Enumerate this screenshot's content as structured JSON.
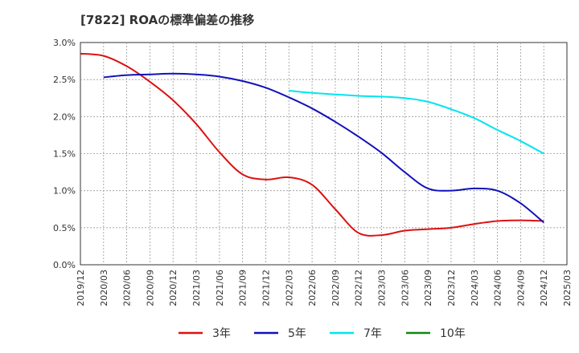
{
  "chart_data": {
    "type": "line",
    "title": "[7822]  ROAの標準偏差の推移",
    "xlabel": "",
    "ylabel": "",
    "ylim": [
      0,
      3.0
    ],
    "y_ticks": [
      "0.0%",
      "0.5%",
      "1.0%",
      "1.5%",
      "2.0%",
      "2.5%",
      "3.0%"
    ],
    "x_ticks": [
      "2019/12",
      "2020/03",
      "2020/06",
      "2020/09",
      "2020/12",
      "2021/03",
      "2021/06",
      "2021/09",
      "2021/12",
      "2022/03",
      "2022/06",
      "2022/09",
      "2022/12",
      "2023/03",
      "2023/06",
      "2023/09",
      "2023/12",
      "2024/03",
      "2024/06",
      "2024/09",
      "2024/12",
      "2025/03"
    ],
    "grid": true,
    "legend_position": "bottom",
    "series": [
      {
        "name": "3年",
        "color": "#dd1111",
        "x": [
          "2019/12",
          "2020/03",
          "2020/06",
          "2020/09",
          "2020/12",
          "2021/03",
          "2021/06",
          "2021/09",
          "2021/12",
          "2022/03",
          "2022/06",
          "2022/09",
          "2022/12",
          "2023/03",
          "2023/06",
          "2023/09",
          "2023/12",
          "2024/03",
          "2024/06",
          "2024/09",
          "2024/12"
        ],
        "values": [
          2.85,
          2.82,
          2.68,
          2.47,
          2.22,
          1.9,
          1.52,
          1.22,
          1.15,
          1.18,
          1.08,
          0.75,
          0.43,
          0.4,
          0.46,
          0.48,
          0.5,
          0.55,
          0.59,
          0.6,
          0.59
        ]
      },
      {
        "name": "5年",
        "color": "#1111bb",
        "x": [
          "2020/03",
          "2020/06",
          "2020/09",
          "2020/12",
          "2021/03",
          "2021/06",
          "2021/09",
          "2021/12",
          "2022/03",
          "2022/06",
          "2022/09",
          "2022/12",
          "2023/03",
          "2023/06",
          "2023/09",
          "2023/12",
          "2024/03",
          "2024/06",
          "2024/09",
          "2024/12"
        ],
        "values": [
          2.53,
          2.56,
          2.57,
          2.58,
          2.57,
          2.54,
          2.48,
          2.39,
          2.26,
          2.11,
          1.93,
          1.73,
          1.51,
          1.25,
          1.03,
          1.0,
          1.03,
          1.0,
          0.83,
          0.57
        ]
      },
      {
        "name": "7年",
        "color": "#00e5ee",
        "x": [
          "2022/03",
          "2022/06",
          "2022/09",
          "2022/12",
          "2023/03",
          "2023/06",
          "2023/09",
          "2023/12",
          "2024/03",
          "2024/06",
          "2024/09",
          "2024/12"
        ],
        "values": [
          2.35,
          2.32,
          2.3,
          2.28,
          2.27,
          2.25,
          2.2,
          2.1,
          1.98,
          1.82,
          1.67,
          1.5
        ]
      },
      {
        "name": "10年",
        "color": "#118811",
        "x": [],
        "values": []
      }
    ]
  }
}
